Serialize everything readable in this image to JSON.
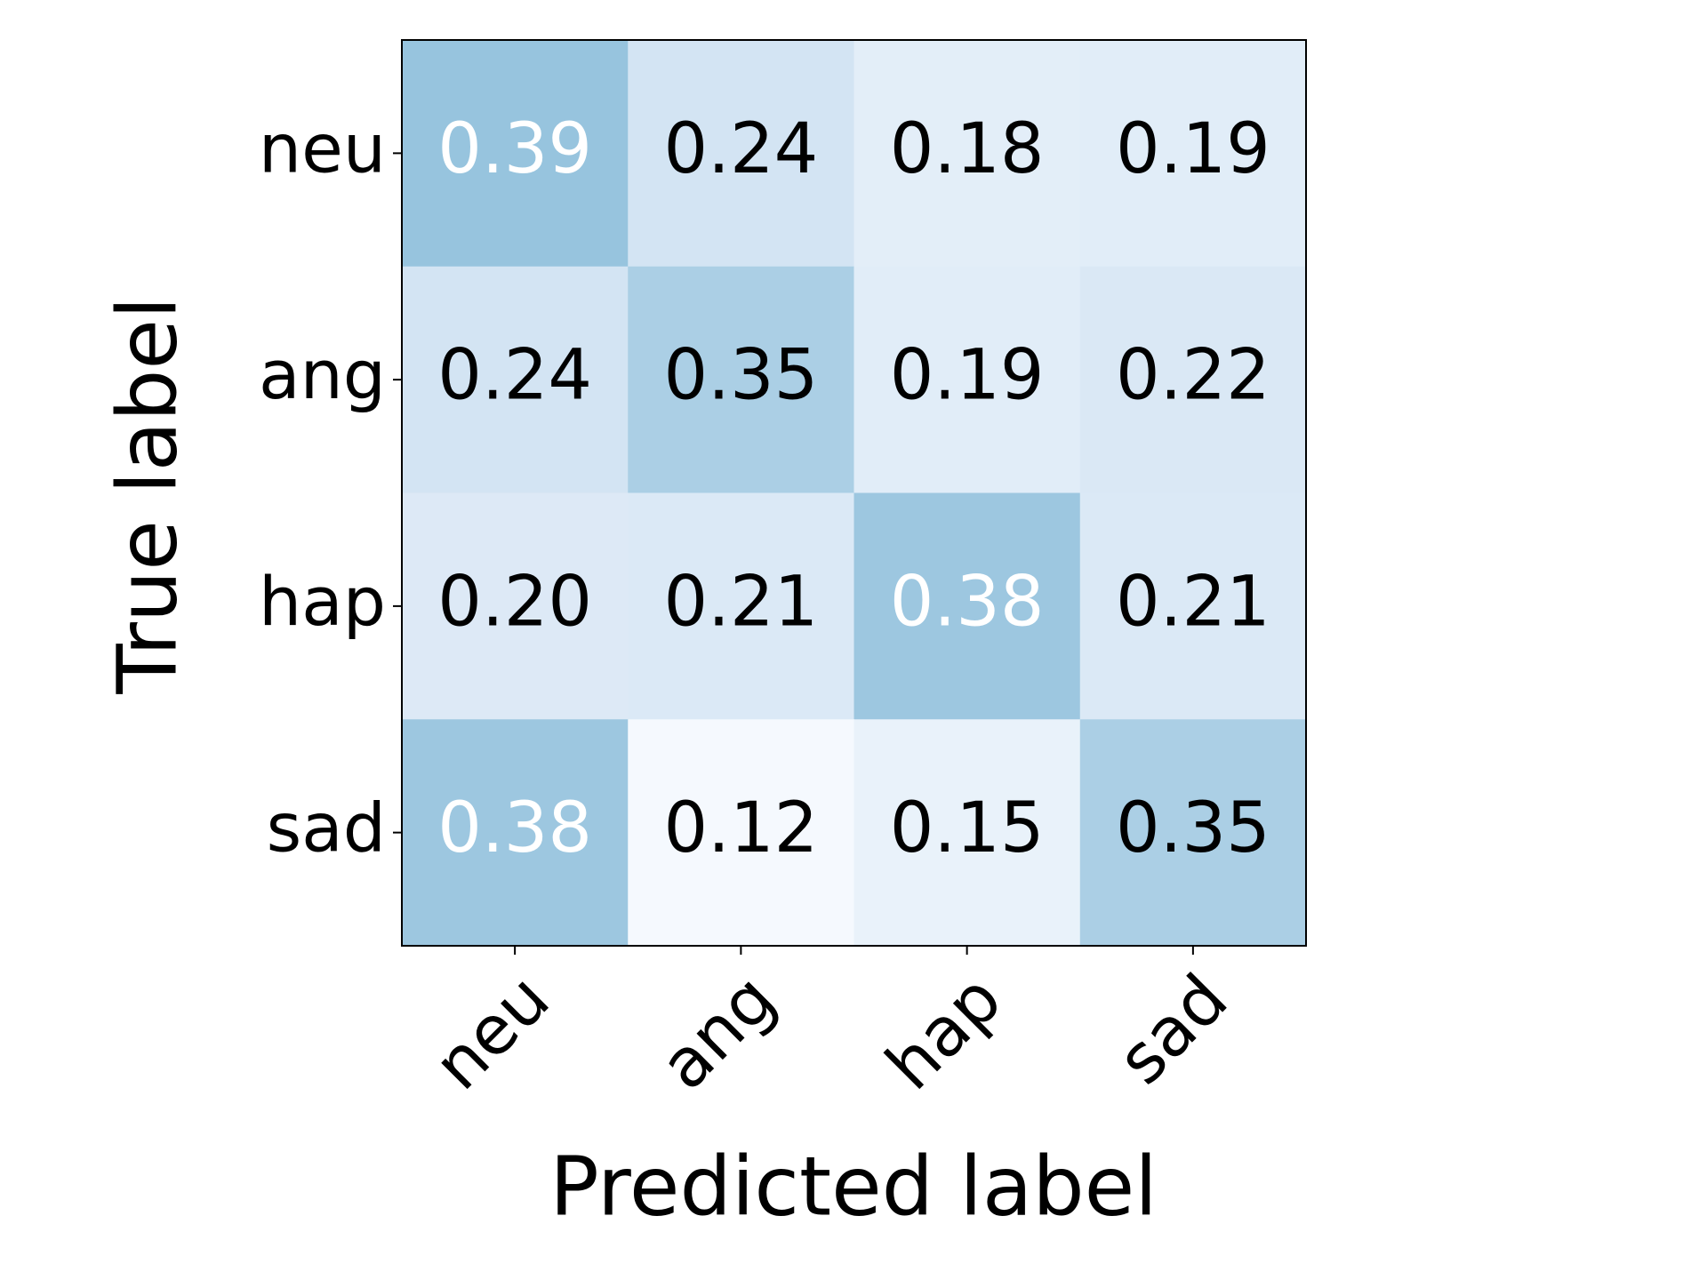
{
  "chart_data": {
    "type": "heatmap",
    "x_label": "Predicted label",
    "y_label": "True label",
    "rows": [
      "neu",
      "ang",
      "hap",
      "sad"
    ],
    "cols": [
      "neu",
      "ang",
      "hap",
      "sad"
    ],
    "values": [
      [
        0.39,
        0.24,
        0.18,
        0.19
      ],
      [
        0.24,
        0.35,
        0.19,
        0.22
      ],
      [
        0.2,
        0.21,
        0.38,
        0.21
      ],
      [
        0.38,
        0.12,
        0.15,
        0.35
      ]
    ],
    "value_labels": [
      [
        "0.39",
        "0.24",
        "0.18",
        "0.19"
      ],
      [
        "0.24",
        "0.35",
        "0.19",
        "0.22"
      ],
      [
        "0.20",
        "0.21",
        "0.38",
        "0.21"
      ],
      [
        "0.38",
        "0.12",
        "0.15",
        "0.35"
      ]
    ],
    "colors": [
      [
        "#97c4de",
        "#d3e4f3",
        "#e3eef8",
        "#e1edf8"
      ],
      [
        "#d3e4f3",
        "#abcfe5",
        "#e1edf8",
        "#dae8f5"
      ],
      [
        "#dde9f6",
        "#dbe9f6",
        "#9dc7e0",
        "#dbe9f6"
      ],
      [
        "#9dc7e0",
        "#f5f9fe",
        "#e9f2fa",
        "#abcfe5"
      ]
    ],
    "text_colors": [
      [
        "#ffffff",
        "#000000",
        "#000000",
        "#000000"
      ],
      [
        "#000000",
        "#000000",
        "#000000",
        "#000000"
      ],
      [
        "#000000",
        "#000000",
        "#ffffff",
        "#000000"
      ],
      [
        "#ffffff",
        "#000000",
        "#000000",
        "#000000"
      ]
    ]
  }
}
